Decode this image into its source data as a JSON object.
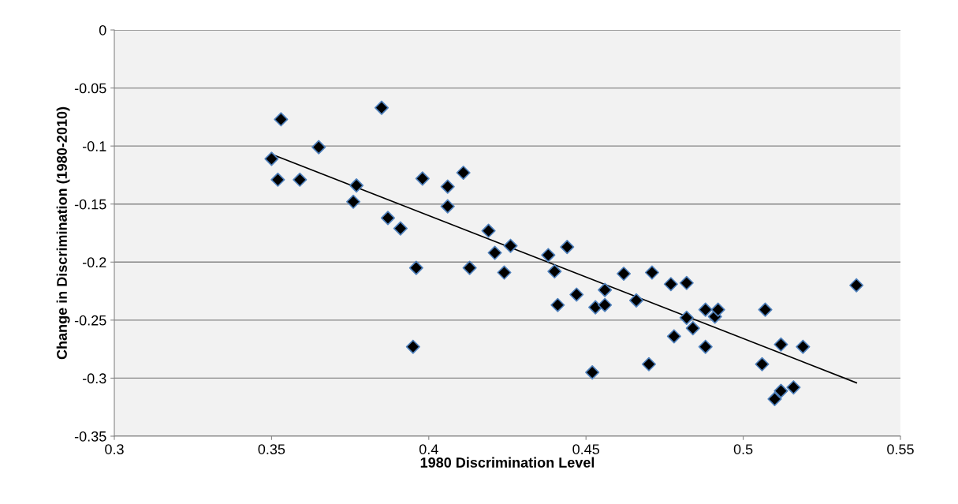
{
  "chart_data": {
    "type": "scatter",
    "xlabel": "1980 Discrimination Level",
    "ylabel": "Change in Discrimination (1980-2010)",
    "xlim": [
      0.3,
      0.55
    ],
    "xticks": [
      0.3,
      0.35,
      0.4,
      0.45,
      0.5,
      0.55
    ],
    "ylim": [
      -0.35,
      0
    ],
    "yticks": [
      0,
      -0.05,
      -0.1,
      -0.15,
      -0.2,
      -0.25,
      -0.3,
      -0.35
    ],
    "grid": "y",
    "legend": false,
    "marker": "diamond",
    "series": [
      {
        "color": "#000000",
        "x": [
          0.35,
          0.352,
          0.353,
          0.359,
          0.365,
          0.376,
          0.377,
          0.385,
          0.387,
          0.391,
          0.396,
          0.395,
          0.398,
          0.406,
          0.406,
          0.411,
          0.419,
          0.421,
          0.413,
          0.426,
          0.424,
          0.438,
          0.44,
          0.441,
          0.444,
          0.447,
          0.452,
          0.453,
          0.456,
          0.456,
          0.462,
          0.466,
          0.471,
          0.47,
          0.477,
          0.478,
          0.482,
          0.482,
          0.484,
          0.488,
          0.488,
          0.491,
          0.492,
          0.506,
          0.507,
          0.51,
          0.512,
          0.512,
          0.516,
          0.519,
          0.536
        ],
        "values": [
          -0.111,
          -0.129,
          -0.077,
          -0.129,
          -0.101,
          -0.148,
          -0.134,
          -0.067,
          -0.162,
          -0.171,
          -0.205,
          -0.273,
          -0.128,
          -0.135,
          -0.152,
          -0.123,
          -0.173,
          -0.192,
          -0.205,
          -0.186,
          -0.209,
          -0.194,
          -0.208,
          -0.237,
          -0.187,
          -0.228,
          -0.295,
          -0.239,
          -0.237,
          -0.224,
          -0.21,
          -0.233,
          -0.209,
          -0.288,
          -0.219,
          -0.264,
          -0.218,
          -0.248,
          -0.257,
          -0.273,
          -0.241,
          -0.247,
          -0.241,
          -0.288,
          -0.241,
          -0.318,
          -0.271,
          -0.311,
          -0.308,
          -0.273,
          -0.22
        ]
      },
      {
        "type": "line",
        "color": "#000000",
        "marker": "none",
        "x": [
          0.35,
          0.536
        ],
        "values": [
          -0.107,
          -0.304
        ]
      }
    ]
  }
}
